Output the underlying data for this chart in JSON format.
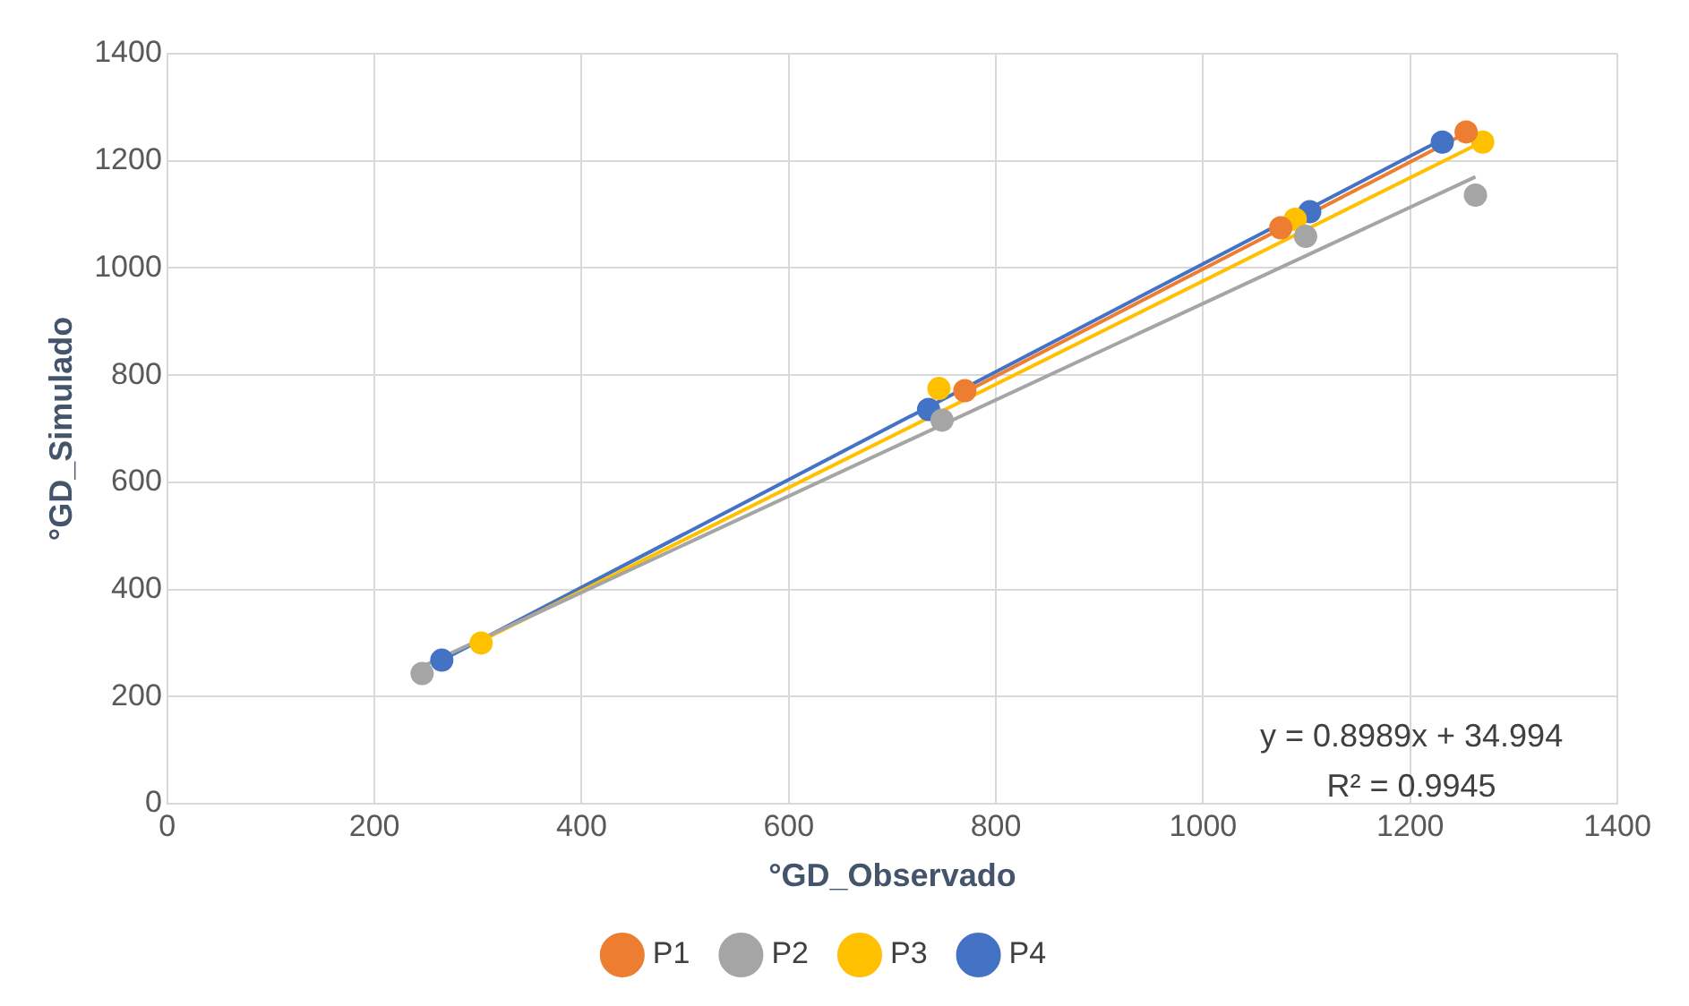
{
  "chart_data": {
    "type": "scatter",
    "xlabel": "°GD_Observado",
    "ylabel": "°GD_Simulado",
    "xlim": [
      0,
      1400
    ],
    "xticks": [
      0,
      200,
      400,
      600,
      800,
      1000,
      1200,
      1400
    ],
    "ylim": [
      0,
      1400
    ],
    "yticks": [
      0,
      200,
      400,
      600,
      800,
      1000,
      1200,
      1400
    ],
    "grid": true,
    "legend": "bottom",
    "marker": "circle",
    "series": [
      {
        "name": "P1",
        "color": "#ed7d31",
        "x": [
          770,
          1075,
          1254
        ],
        "values": [
          771,
          1075,
          1254
        ]
      },
      {
        "name": "P2",
        "color": "#a5a5a5",
        "x": [
          246,
          748,
          1099,
          1263
        ],
        "values": [
          243,
          716,
          1059,
          1136
        ]
      },
      {
        "name": "P3",
        "color": "#ffc000",
        "x": [
          303,
          745,
          1089,
          1270
        ],
        "values": [
          300,
          775,
          1091,
          1235
        ]
      },
      {
        "name": "P4",
        "color": "#4472c4",
        "x": [
          265,
          735,
          1103,
          1231
        ],
        "values": [
          268,
          736,
          1105,
          1235
        ]
      },
      {
        "type": "line",
        "color": "#ed7d31",
        "x": [
          770,
          1254
        ],
        "values": [
          768,
          1252
        ],
        "marker": "none"
      },
      {
        "type": "line",
        "color": "#a5a5a5",
        "x": [
          246,
          1263
        ],
        "values": [
          256,
          1170
        ],
        "marker": "none"
      },
      {
        "type": "line",
        "color": "#ffc000",
        "x": [
          303,
          1270
        ],
        "values": [
          304,
          1236
        ],
        "marker": "none"
      },
      {
        "type": "line",
        "color": "#4472c4",
        "x": [
          265,
          1231
        ],
        "values": [
          268,
          1240
        ],
        "marker": "none"
      }
    ],
    "annotations": [
      "y = 0.8989x + 34.994",
      "R² = 0.9945"
    ]
  }
}
